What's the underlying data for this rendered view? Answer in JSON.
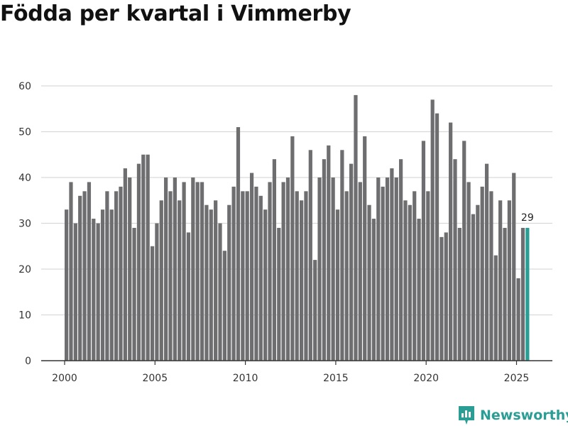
{
  "title": "Födda per kvartal i Vimmerby",
  "brand": {
    "name": "Newsworthy",
    "icon": "newsworthy-logo-icon"
  },
  "colors": {
    "bar": "#6e6e70",
    "highlight": "#2a9d94",
    "grid": "#d9d9d9",
    "axis": "#333333"
  },
  "chart_data": {
    "type": "bar",
    "title": "Födda per kvartal i Vimmerby",
    "xlabel": "",
    "ylabel": "",
    "ylim": [
      0,
      60
    ],
    "yticks": [
      0,
      10,
      20,
      30,
      40,
      50,
      60
    ],
    "xticks": [
      2000,
      2005,
      2010,
      2015,
      2020,
      2025
    ],
    "grid": true,
    "first_period": "2000 Q1",
    "periods_per_year": 4,
    "values": [
      33,
      39,
      30,
      36,
      37,
      39,
      31,
      30,
      33,
      37,
      33,
      37,
      38,
      42,
      40,
      29,
      43,
      45,
      45,
      25,
      30,
      35,
      40,
      37,
      40,
      35,
      39,
      28,
      40,
      39,
      39,
      34,
      33,
      35,
      30,
      24,
      34,
      38,
      51,
      37,
      37,
      41,
      38,
      36,
      33,
      39,
      44,
      29,
      39,
      40,
      49,
      37,
      35,
      37,
      46,
      22,
      40,
      44,
      47,
      40,
      33,
      46,
      37,
      43,
      58,
      39,
      49,
      34,
      31,
      40,
      38,
      40,
      42,
      40,
      44,
      35,
      34,
      37,
      31,
      48,
      37,
      57,
      54,
      27,
      28,
      52,
      44,
      29,
      48,
      39,
      32,
      34,
      38,
      43,
      37,
      23,
      35,
      29,
      35,
      41,
      18,
      29,
      29
    ],
    "highlight_index": 102,
    "annotation": {
      "text": "29",
      "index": 102
    }
  }
}
